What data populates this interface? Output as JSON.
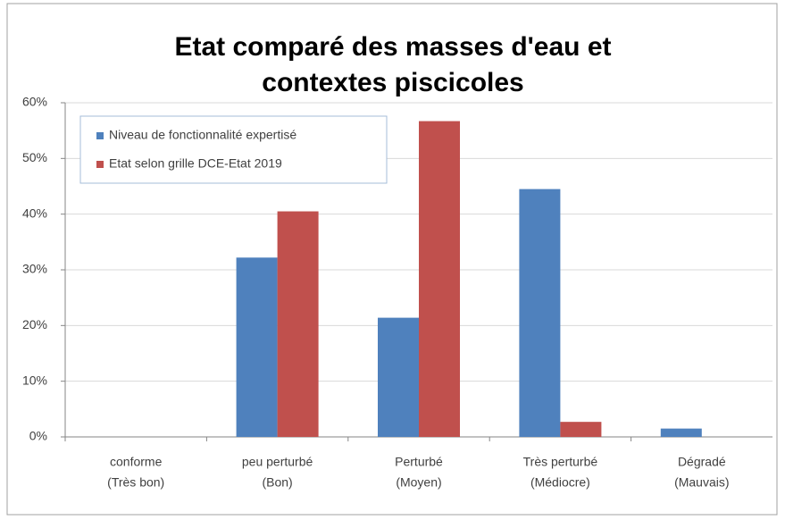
{
  "chart_data": {
    "type": "bar",
    "title": [
      "Etat comparé des masses d'eau et",
      "contextes piscicoles"
    ],
    "categories": [
      [
        "conforme",
        "(Très bon)"
      ],
      [
        "peu perturbé",
        "(Bon)"
      ],
      [
        "Perturbé",
        "(Moyen)"
      ],
      [
        "Très perturbé",
        "(Médiocre)"
      ],
      [
        "Dégradé",
        "(Mauvais)"
      ]
    ],
    "series": [
      {
        "name": "Niveau de fonctionnalité expertisé",
        "color": "#4f81bd",
        "values": [
          0,
          32.2,
          21.4,
          44.5,
          1.5
        ]
      },
      {
        "name": "Etat selon grille DCE-Etat 2019",
        "color": "#c0504d",
        "values": [
          0,
          40.5,
          56.7,
          2.7,
          0
        ]
      }
    ],
    "ylim": [
      0,
      60
    ],
    "yticks": [
      {
        "value": 0,
        "label": "0%"
      },
      {
        "value": 10,
        "label": "10%"
      },
      {
        "value": 20,
        "label": "20%"
      },
      {
        "value": 30,
        "label": "30%"
      },
      {
        "value": 40,
        "label": "40%"
      },
      {
        "value": 50,
        "label": "50%"
      },
      {
        "value": 60,
        "label": "60%"
      }
    ],
    "grid": true,
    "legend": "top-left"
  }
}
